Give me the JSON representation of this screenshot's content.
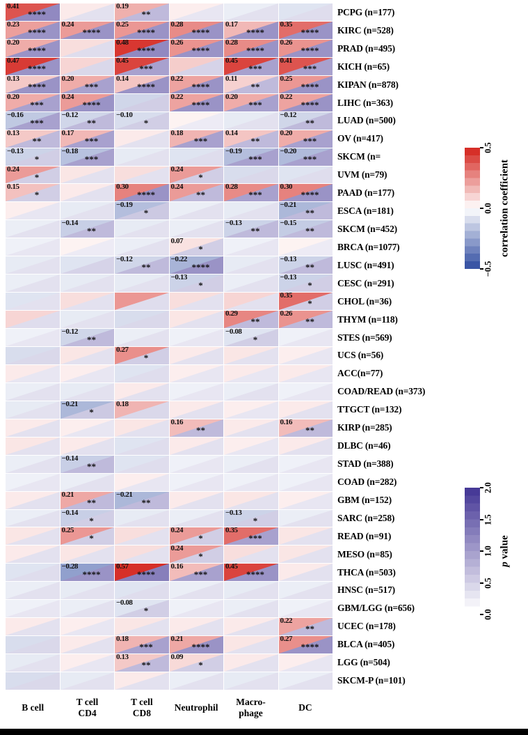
{
  "chart_data": {
    "type": "heatmap",
    "description": "Correlation heatmap between immune cell infiltration and cancer types; each cell split diagonally: upper-left triangle = correlation coefficient (blue-white-red), lower-right triangle = p value shading (white-purple). Cell encoding: [correlation, p_shade_0_to_2, significance_stars?] where stars present means the numeric label is printed.",
    "columns": [
      "B cell",
      "T cell\nCD4",
      "T cell\nCD8",
      "Neutrophil",
      "Macro-\nphage",
      "DC"
    ],
    "colorbars": {
      "correlation": {
        "title": "correlation coefficient",
        "ticks": [
          "0.5",
          "0.0",
          "−0.5"
        ],
        "domain": [
          -0.5,
          0.5
        ],
        "pos_color": "#d62f28",
        "neg_color": "#3a55a5",
        "mid_color": "#ffffff"
      },
      "pvalue": {
        "title": "p value",
        "ticks": [
          "2.0",
          "1.5",
          "1.0",
          "0.5",
          "0.0"
        ],
        "domain": [
          0,
          2
        ],
        "max_color": "#473a97",
        "min_color": "#ffffff"
      }
    },
    "rows": [
      {
        "label": "PCPG (n=177)",
        "cells": [
          [
            0.41,
            1.2,
            "****"
          ],
          [
            0.05,
            0.3
          ],
          [
            0.19,
            0.7,
            "**"
          ],
          [
            0.04,
            0.25
          ],
          [
            -0.05,
            0.3
          ],
          [
            -0.08,
            0.35
          ]
        ]
      },
      {
        "label": "KIRC (n=528)",
        "cells": [
          [
            0.23,
            1.1,
            "****"
          ],
          [
            0.24,
            1.1,
            "****"
          ],
          [
            0.25,
            1.1,
            "****"
          ],
          [
            0.28,
            1.1,
            "****"
          ],
          [
            0.17,
            1.1,
            "****"
          ],
          [
            0.35,
            1.1,
            "****"
          ]
        ]
      },
      {
        "label": "PRAD (n=495)",
        "cells": [
          [
            0.2,
            1.1,
            "****"
          ],
          [
            0.08,
            0.35
          ],
          [
            0.48,
            1.2,
            "****"
          ],
          [
            0.26,
            1.1,
            "****"
          ],
          [
            0.28,
            1.1,
            "****"
          ],
          [
            0.26,
            1.1,
            "****"
          ]
        ]
      },
      {
        "label": "KICH (n=65)",
        "cells": [
          [
            0.47,
            1.1,
            "****"
          ],
          [
            0.1,
            0.4
          ],
          [
            0.45,
            0.95,
            "***"
          ],
          [
            0.12,
            0.45
          ],
          [
            0.45,
            0.95,
            "***"
          ],
          [
            0.41,
            0.95,
            "***"
          ]
        ]
      },
      {
        "label": "KIPAN (n=878)",
        "cells": [
          [
            0.13,
            1.1,
            "****"
          ],
          [
            0.2,
            0.95,
            "***"
          ],
          [
            0.14,
            1.1,
            "****"
          ],
          [
            0.22,
            1.1,
            "****"
          ],
          [
            0.11,
            0.7,
            "**"
          ],
          [
            0.25,
            1.1,
            "****"
          ]
        ]
      },
      {
        "label": "LIHC (n=363)",
        "cells": [
          [
            0.2,
            0.95,
            "***"
          ],
          [
            0.24,
            1.1,
            "****"
          ],
          [
            -0.12,
            0.5
          ],
          [
            0.22,
            1.1,
            "****"
          ],
          [
            0.2,
            0.95,
            "***"
          ],
          [
            0.22,
            1.1,
            "****"
          ]
        ]
      },
      {
        "label": "LUAD (n=500)",
        "cells": [
          [
            -0.16,
            0.95,
            "***"
          ],
          [
            -0.12,
            0.7,
            "**"
          ],
          [
            -0.1,
            0.5,
            "*"
          ],
          [
            0.03,
            0.2
          ],
          [
            -0.06,
            0.3
          ],
          [
            -0.12,
            0.7,
            "**"
          ]
        ]
      },
      {
        "label": "OV (n=417)",
        "cells": [
          [
            0.13,
            0.7,
            "**"
          ],
          [
            0.17,
            0.95,
            "***"
          ],
          [
            0.05,
            0.3
          ],
          [
            0.18,
            0.95,
            "***"
          ],
          [
            0.14,
            0.7,
            "**"
          ],
          [
            0.2,
            0.95,
            "***"
          ]
        ]
      },
      {
        "label": "SKCM (n=",
        "cells": [
          [
            -0.13,
            0.5,
            "*"
          ],
          [
            -0.18,
            0.95,
            "***"
          ],
          [
            -0.06,
            0.3
          ],
          [
            -0.08,
            0.35
          ],
          [
            -0.19,
            0.95,
            "***"
          ],
          [
            -0.2,
            0.95,
            "***"
          ]
        ]
      },
      {
        "label": "UVM (n=79)",
        "cells": [
          [
            0.24,
            0.5,
            "*"
          ],
          [
            0.06,
            0.3
          ],
          [
            0.08,
            0.3
          ],
          [
            0.24,
            0.5,
            "*"
          ],
          [
            -0.1,
            0.4
          ],
          [
            -0.08,
            0.35
          ]
        ]
      },
      {
        "label": "PAAD (n=177)",
        "cells": [
          [
            0.15,
            0.5,
            "*"
          ],
          [
            0.05,
            0.3
          ],
          [
            0.3,
            1.1,
            "****"
          ],
          [
            0.24,
            0.7,
            "**"
          ],
          [
            0.28,
            0.95,
            "***"
          ],
          [
            0.3,
            1.1,
            "****"
          ]
        ]
      },
      {
        "label": "ESCA (n=181)",
        "cells": [
          [
            0.04,
            0.25
          ],
          [
            -0.06,
            0.3
          ],
          [
            -0.19,
            0.55,
            "*"
          ],
          [
            -0.05,
            0.3
          ],
          [
            -0.06,
            0.3
          ],
          [
            -0.21,
            0.7,
            "**"
          ]
        ]
      },
      {
        "label": "SKCM (n=452)",
        "cells": [
          [
            -0.05,
            0.3
          ],
          [
            -0.14,
            0.7,
            "**"
          ],
          [
            -0.06,
            0.3
          ],
          [
            -0.05,
            0.3
          ],
          [
            -0.13,
            0.7,
            "**"
          ],
          [
            -0.15,
            0.7,
            "**"
          ]
        ]
      },
      {
        "label": "BRCA (n=1077)",
        "cells": [
          [
            -0.04,
            0.25
          ],
          [
            0.03,
            0.2
          ],
          [
            -0.05,
            0.3
          ],
          [
            0.07,
            0.5,
            "*"
          ],
          [
            -0.04,
            0.25
          ],
          [
            0.03,
            0.2
          ]
        ]
      },
      {
        "label": "LUSC (n=491)",
        "cells": [
          [
            -0.06,
            0.3
          ],
          [
            -0.08,
            0.45
          ],
          [
            -0.12,
            0.7,
            "**"
          ],
          [
            -0.22,
            1.1,
            "****"
          ],
          [
            -0.06,
            0.3
          ],
          [
            -0.13,
            0.7,
            "**"
          ]
        ]
      },
      {
        "label": "CESC (n=291)",
        "cells": [
          [
            -0.05,
            0.3
          ],
          [
            -0.06,
            0.3
          ],
          [
            -0.06,
            0.3
          ],
          [
            -0.13,
            0.5,
            "*"
          ],
          [
            -0.05,
            0.3
          ],
          [
            -0.13,
            0.5,
            "*"
          ]
        ]
      },
      {
        "label": "CHOL (n=36)",
        "cells": [
          [
            -0.08,
            0.3
          ],
          [
            0.08,
            0.3
          ],
          [
            0.25,
            0.35
          ],
          [
            0.08,
            0.3
          ],
          [
            0.1,
            0.3
          ],
          [
            0.35,
            0.5,
            "*"
          ]
        ]
      },
      {
        "label": "THYM (n=118)",
        "cells": [
          [
            0.1,
            0.35
          ],
          [
            -0.06,
            0.3
          ],
          [
            -0.1,
            0.4
          ],
          [
            0.06,
            0.3
          ],
          [
            0.29,
            0.7,
            "**"
          ],
          [
            0.26,
            0.7,
            "**"
          ]
        ]
      },
      {
        "label": "STES (n=569)",
        "cells": [
          [
            -0.04,
            0.25
          ],
          [
            -0.12,
            0.7,
            "**"
          ],
          [
            -0.05,
            0.3
          ],
          [
            -0.04,
            0.25
          ],
          [
            -0.08,
            0.5,
            "*"
          ],
          [
            -0.04,
            0.25
          ]
        ]
      },
      {
        "label": "UCS (n=56)",
        "cells": [
          [
            -0.1,
            0.4
          ],
          [
            0.06,
            0.3
          ],
          [
            0.27,
            0.5,
            "*"
          ],
          [
            0.05,
            0.3
          ],
          [
            0.06,
            0.3
          ],
          [
            0.04,
            0.25
          ]
        ]
      },
      {
        "label": "ACC(n=77)",
        "cells": [
          [
            0.05,
            0.25
          ],
          [
            0.04,
            0.25
          ],
          [
            -0.08,
            0.35
          ],
          [
            0.04,
            0.25
          ],
          [
            0.05,
            0.25
          ],
          [
            0.05,
            0.25
          ]
        ]
      },
      {
        "label": "COAD/READ (n=373)",
        "cells": [
          [
            -0.05,
            0.3
          ],
          [
            -0.06,
            0.3
          ],
          [
            0.05,
            0.3
          ],
          [
            -0.04,
            0.25
          ],
          [
            -0.05,
            0.3
          ],
          [
            -0.04,
            0.25
          ]
        ]
      },
      {
        "label": "TTGCT (n=132)",
        "cells": [
          [
            -0.06,
            0.3
          ],
          [
            -0.21,
            0.55,
            "*"
          ],
          [
            0.18,
            0.4,
            ""
          ],
          [
            0.05,
            0.3
          ],
          [
            0.04,
            0.25
          ],
          [
            0.05,
            0.3
          ]
        ]
      },
      {
        "label": "KIRP (n=285)",
        "cells": [
          [
            0.05,
            0.3
          ],
          [
            0.04,
            0.25
          ],
          [
            0.06,
            0.3
          ],
          [
            0.16,
            0.7,
            "**"
          ],
          [
            0.05,
            0.3
          ],
          [
            0.16,
            0.7,
            "**"
          ]
        ]
      },
      {
        "label": "DLBC (n=46)",
        "cells": [
          [
            0.06,
            0.3
          ],
          [
            0.05,
            0.3
          ],
          [
            -0.08,
            0.35
          ],
          [
            0.05,
            0.3
          ],
          [
            0.04,
            0.25
          ],
          [
            0.05,
            0.3
          ]
        ]
      },
      {
        "label": "STAD (n=388)",
        "cells": [
          [
            -0.05,
            0.3
          ],
          [
            -0.14,
            0.7,
            "**"
          ],
          [
            -0.08,
            0.35
          ],
          [
            -0.04,
            0.25
          ],
          [
            -0.05,
            0.3
          ],
          [
            -0.04,
            0.25
          ]
        ]
      },
      {
        "label": "COAD (n=282)",
        "cells": [
          [
            -0.04,
            0.25
          ],
          [
            -0.05,
            0.3
          ],
          [
            0.04,
            0.25
          ],
          [
            -0.04,
            0.25
          ],
          [
            -0.04,
            0.25
          ],
          [
            -0.04,
            0.25
          ]
        ]
      },
      {
        "label": "GBM (n=152)",
        "cells": [
          [
            0.05,
            0.3
          ],
          [
            0.21,
            0.7,
            "**"
          ],
          [
            -0.21,
            0.7,
            "**"
          ],
          [
            0.05,
            0.3
          ],
          [
            0.06,
            0.3
          ],
          [
            0.04,
            0.25
          ]
        ]
      },
      {
        "label": "SARC (n=258)",
        "cells": [
          [
            -0.05,
            0.3
          ],
          [
            -0.14,
            0.5,
            "*"
          ],
          [
            -0.06,
            0.3
          ],
          [
            -0.05,
            0.3
          ],
          [
            -0.13,
            0.5,
            "*"
          ],
          [
            -0.05,
            0.3
          ]
        ]
      },
      {
        "label": "READ (n=91)",
        "cells": [
          [
            0.06,
            0.3
          ],
          [
            0.25,
            0.5,
            "*"
          ],
          [
            0.08,
            0.3
          ],
          [
            0.24,
            0.5,
            "*"
          ],
          [
            0.35,
            0.95,
            "***"
          ],
          [
            0.06,
            0.3
          ]
        ]
      },
      {
        "label": "MESO (n=85)",
        "cells": [
          [
            0.05,
            0.3
          ],
          [
            0.06,
            0.3
          ],
          [
            0.08,
            0.3
          ],
          [
            0.24,
            0.5,
            "*"
          ],
          [
            0.08,
            0.3
          ],
          [
            0.06,
            0.3
          ]
        ]
      },
      {
        "label": "THCA (n=503)",
        "cells": [
          [
            -0.08,
            0.35
          ],
          [
            -0.28,
            1.1,
            "****"
          ],
          [
            0.57,
            1.3,
            "****"
          ],
          [
            0.16,
            0.95,
            "***"
          ],
          [
            0.45,
            1.1,
            "****"
          ],
          [
            0.05,
            0.3
          ]
        ]
      },
      {
        "label": "HNSC (n=517)",
        "cells": [
          [
            -0.05,
            0.3
          ],
          [
            -0.06,
            0.3
          ],
          [
            -0.08,
            0.35
          ],
          [
            -0.05,
            0.3
          ],
          [
            -0.06,
            0.3
          ],
          [
            -0.05,
            0.3
          ]
        ]
      },
      {
        "label": "GBM/LGG (n=656)",
        "cells": [
          [
            -0.04,
            0.25
          ],
          [
            -0.05,
            0.3
          ],
          [
            -0.08,
            0.5,
            "*"
          ],
          [
            -0.04,
            0.25
          ],
          [
            -0.05,
            0.3
          ],
          [
            -0.04,
            0.25
          ]
        ]
      },
      {
        "label": "UCEC (n=178)",
        "cells": [
          [
            0.05,
            0.3
          ],
          [
            0.04,
            0.25
          ],
          [
            0.06,
            0.3
          ],
          [
            0.05,
            0.3
          ],
          [
            0.05,
            0.3
          ],
          [
            0.22,
            0.7,
            "**"
          ]
        ]
      },
      {
        "label": "BLCA (n=405)",
        "cells": [
          [
            -0.1,
            0.4
          ],
          [
            0.05,
            0.3
          ],
          [
            0.18,
            0.95,
            "***"
          ],
          [
            0.21,
            1.1,
            "****"
          ],
          [
            0.06,
            0.3
          ],
          [
            0.27,
            1.1,
            "****"
          ]
        ]
      },
      {
        "label": "LGG (n=504)",
        "cells": [
          [
            -0.06,
            0.3
          ],
          [
            0.04,
            0.25
          ],
          [
            0.13,
            0.7,
            "**"
          ],
          [
            0.09,
            0.5,
            "*"
          ],
          [
            0.05,
            0.3
          ],
          [
            0.04,
            0.25
          ]
        ]
      },
      {
        "label": "SKCM-P (n=101)",
        "cells": [
          [
            -0.1,
            0.4
          ],
          [
            -0.06,
            0.3
          ],
          [
            0.05,
            0.3
          ],
          [
            -0.05,
            0.3
          ],
          [
            -0.06,
            0.3
          ],
          [
            -0.05,
            0.3
          ]
        ]
      }
    ]
  }
}
